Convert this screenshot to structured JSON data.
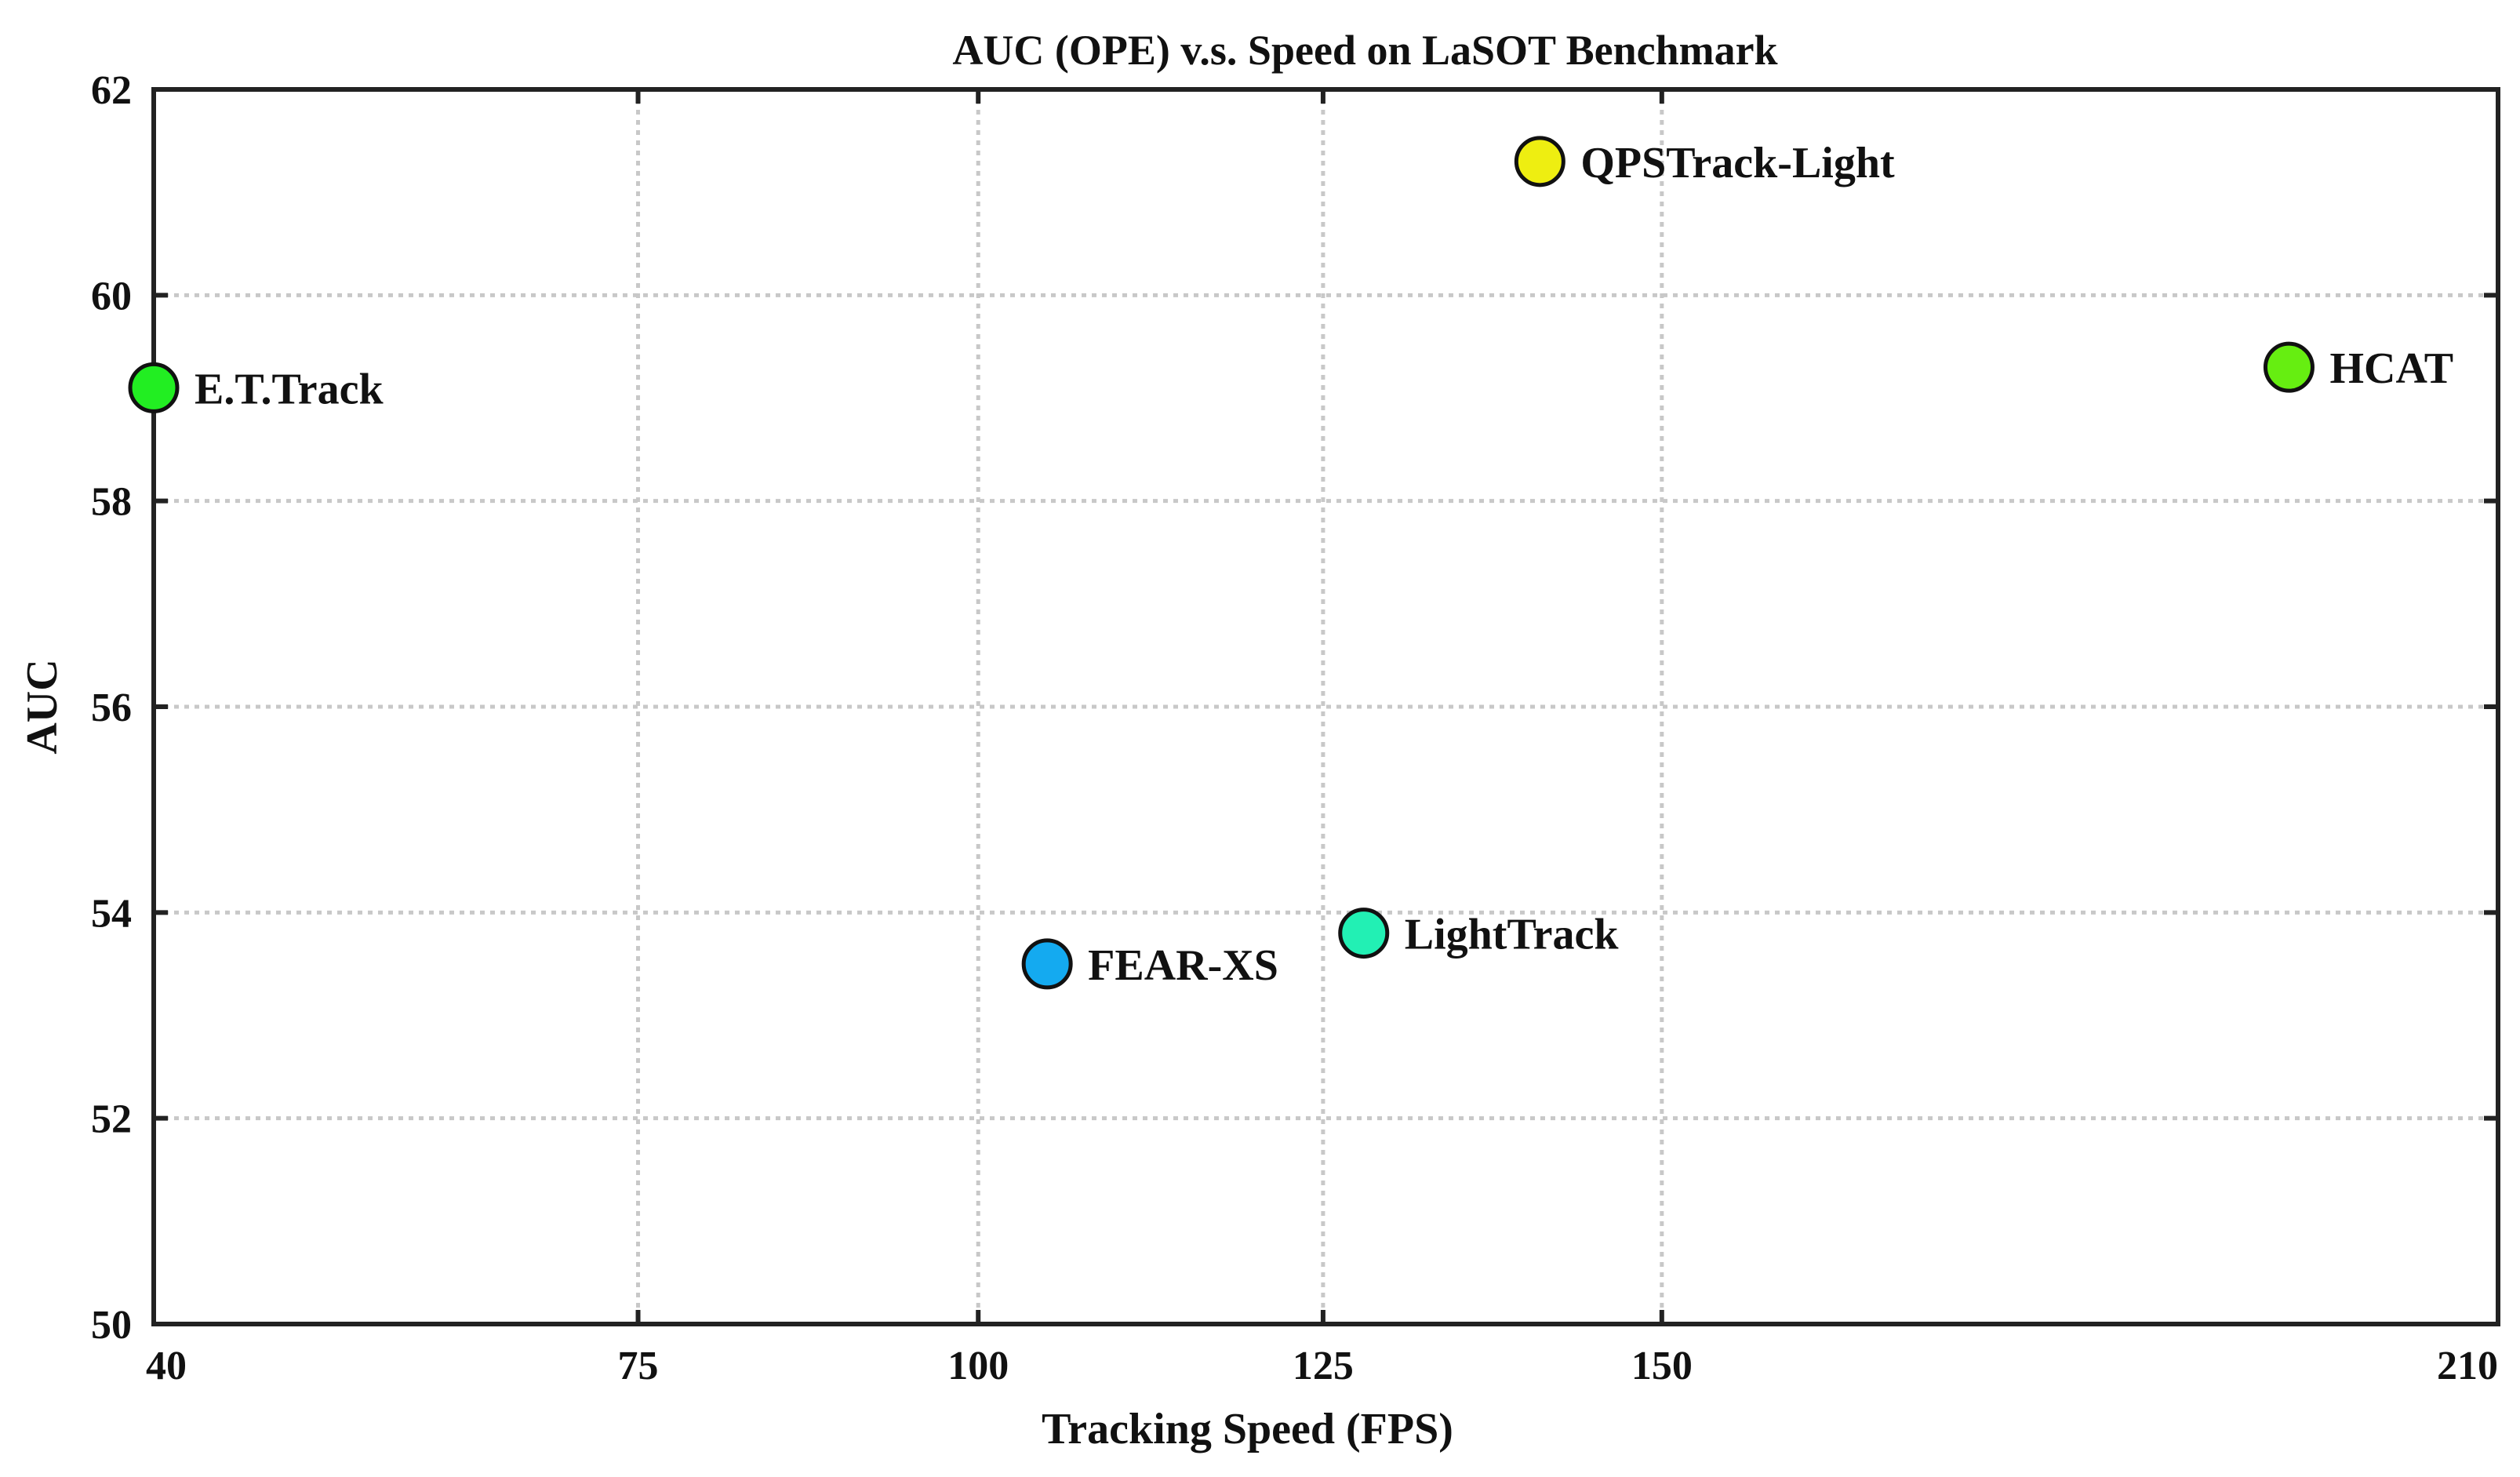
{
  "chart_data": {
    "type": "scatter",
    "title": "AUC (OPE) v.s. Speed on LaSOT Benchmark",
    "xlabel": "Tracking Speed (FPS)",
    "ylabel": "AUC",
    "xticks": [
      40,
      75,
      100,
      125,
      150,
      210
    ],
    "yticks": [
      50,
      52,
      54,
      56,
      58,
      60,
      62
    ],
    "ylim": [
      50,
      62
    ],
    "grid": true,
    "points": [
      {
        "label": "E.T.Track",
        "x": 40,
        "y": 59.1,
        "color": "#22ee22"
      },
      {
        "label": "FEAR-XS",
        "x": 105,
        "y": 53.5,
        "color": "#14aaf0"
      },
      {
        "label": "LightTrack",
        "x": 128,
        "y": 53.8,
        "color": "#22f0b4"
      },
      {
        "label": "QPSTrack-Light",
        "x": 141,
        "y": 61.3,
        "color": "#eeee11"
      },
      {
        "label": "HCAT",
        "x": 195,
        "y": 59.3,
        "color": "#66ee11"
      }
    ]
  }
}
